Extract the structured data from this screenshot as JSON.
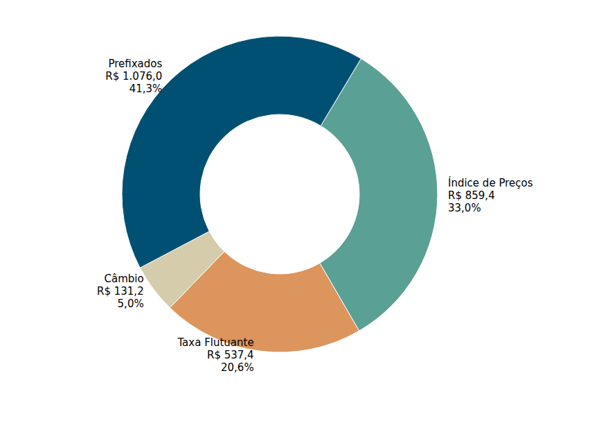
{
  "chart_data": {
    "type": "pie",
    "categories": [
      "Índice de Preços",
      "Taxa Flutuante",
      "Câmbio",
      "Prefixados"
    ],
    "values": [
      859.4,
      537.4,
      131.2,
      1076.0
    ],
    "value_labels": [
      "R$ 859,4",
      "R$ 537,4",
      "R$ 131,2",
      "R$ 1.076,0"
    ],
    "percentages": [
      33.0,
      20.6,
      5.0,
      41.3
    ],
    "percentage_labels": [
      "33,0%",
      "20,6%",
      "5,0%",
      "41,3%"
    ],
    "colors": [
      "#5ba094",
      "#dc955c",
      "#d4ccab",
      "#005073"
    ],
    "data_labels": true
  }
}
